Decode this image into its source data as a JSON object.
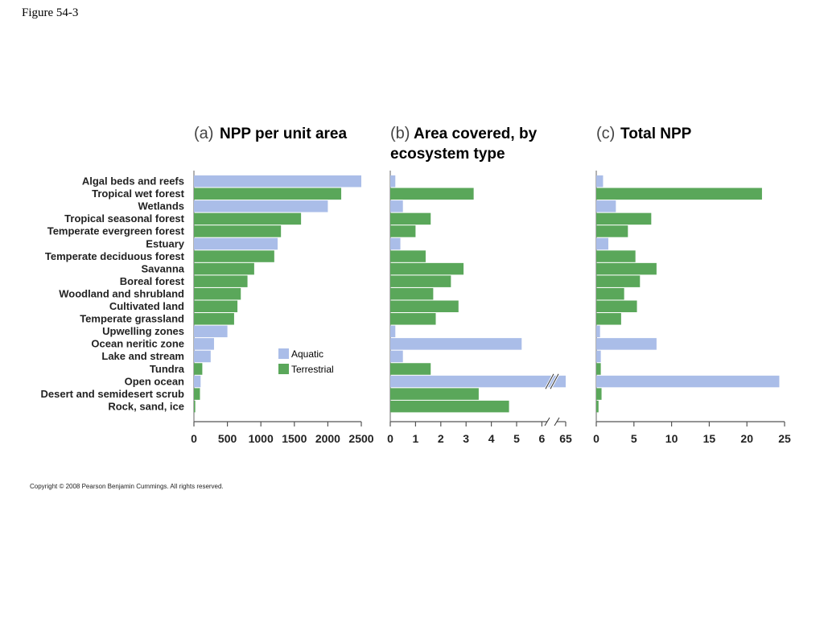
{
  "figure_label": "Figure 54-3",
  "copyright": "Copyright © 2008 Pearson Benjamin Cummings. All rights reserved.",
  "colors": {
    "aquatic": "#aabde8",
    "terrestrial": "#5aa75a"
  },
  "legend": [
    {
      "key": "aquatic",
      "label": "Aquatic"
    },
    {
      "key": "terrestrial",
      "label": "Terrestrial"
    }
  ],
  "chart_data": [
    {
      "type": "bar",
      "orientation": "horizontal",
      "panel_letter": "(a)",
      "title": "NPP per unit area",
      "categories": [
        "Algal beds and reefs",
        "Tropical wet forest",
        "Wetlands",
        "Tropical seasonal forest",
        "Temperate evergreen forest",
        "Estuary",
        "Temperate deciduous forest",
        "Savanna",
        "Boreal forest",
        "Woodland and shrubland",
        "Cultivated land",
        "Temperate grassland",
        "Upwelling zones",
        "Ocean neritic zone",
        "Lake and stream",
        "Tundra",
        "Open ocean",
        "Desert and semidesert scrub",
        "Rock, sand, ice"
      ],
      "groups": [
        "aquatic",
        "terrestrial",
        "aquatic",
        "terrestrial",
        "terrestrial",
        "aquatic",
        "terrestrial",
        "terrestrial",
        "terrestrial",
        "terrestrial",
        "terrestrial",
        "terrestrial",
        "aquatic",
        "aquatic",
        "aquatic",
        "terrestrial",
        "aquatic",
        "terrestrial",
        "terrestrial"
      ],
      "values": [
        2500,
        2200,
        2000,
        1600,
        1300,
        1250,
        1200,
        900,
        800,
        700,
        650,
        600,
        500,
        300,
        250,
        125,
        100,
        90,
        20
      ],
      "xlim": [
        0,
        2500
      ],
      "xticks": [
        "0",
        "500",
        "1000",
        "1500",
        "2000",
        "2500"
      ]
    },
    {
      "type": "bar",
      "orientation": "horizontal",
      "panel_letter": "(b)",
      "title_lines": [
        "Area covered, by",
        "ecosystem type"
      ],
      "categories": [
        "Algal beds and reefs",
        "Tropical wet forest",
        "Wetlands",
        "Tropical seasonal forest",
        "Temperate evergreen forest",
        "Estuary",
        "Temperate deciduous forest",
        "Savanna",
        "Boreal forest",
        "Woodland and shrubland",
        "Cultivated land",
        "Temperate grassland",
        "Upwelling zones",
        "Ocean neritic zone",
        "Lake and stream",
        "Tundra",
        "Open ocean",
        "Desert and semidesert scrub",
        "Rock, sand, ice"
      ],
      "groups": [
        "aquatic",
        "terrestrial",
        "aquatic",
        "terrestrial",
        "terrestrial",
        "aquatic",
        "terrestrial",
        "terrestrial",
        "terrestrial",
        "terrestrial",
        "terrestrial",
        "terrestrial",
        "aquatic",
        "aquatic",
        "aquatic",
        "terrestrial",
        "aquatic",
        "terrestrial",
        "terrestrial"
      ],
      "values": [
        0.2,
        3.3,
        0.5,
        1.6,
        1.0,
        0.4,
        1.4,
        2.9,
        2.4,
        1.7,
        2.7,
        1.8,
        0.2,
        5.2,
        0.5,
        1.6,
        65,
        3.5,
        4.7
      ],
      "xlim": [
        0,
        7
      ],
      "axis_break": [
        6.3,
        6.7
      ],
      "xticks": [
        "0",
        "1",
        "2",
        "3",
        "4",
        "5",
        "6",
        "65"
      ]
    },
    {
      "type": "bar",
      "orientation": "horizontal",
      "panel_letter": "(c)",
      "title": "Total NPP",
      "categories": [
        "Algal beds and reefs",
        "Tropical wet forest",
        "Wetlands",
        "Tropical seasonal forest",
        "Temperate evergreen forest",
        "Estuary",
        "Temperate deciduous forest",
        "Savanna",
        "Boreal forest",
        "Woodland and shrubland",
        "Cultivated land",
        "Temperate grassland",
        "Upwelling zones",
        "Ocean neritic zone",
        "Lake and stream",
        "Tundra",
        "Open ocean",
        "Desert and semidesert scrub",
        "Rock, sand, ice"
      ],
      "groups": [
        "aquatic",
        "terrestrial",
        "aquatic",
        "terrestrial",
        "terrestrial",
        "aquatic",
        "terrestrial",
        "terrestrial",
        "terrestrial",
        "terrestrial",
        "terrestrial",
        "terrestrial",
        "aquatic",
        "aquatic",
        "aquatic",
        "terrestrial",
        "aquatic",
        "terrestrial",
        "terrestrial"
      ],
      "values": [
        0.9,
        22.0,
        2.6,
        7.3,
        4.2,
        1.6,
        5.2,
        8.0,
        5.8,
        3.7,
        5.4,
        3.3,
        0.5,
        8.0,
        0.6,
        0.6,
        24.3,
        0.7,
        0.3
      ],
      "xlim": [
        0,
        25
      ],
      "xticks": [
        "0",
        "5",
        "10",
        "15",
        "20",
        "25"
      ]
    }
  ]
}
